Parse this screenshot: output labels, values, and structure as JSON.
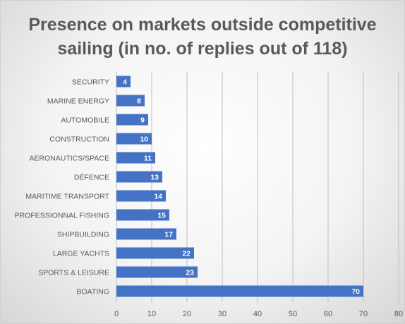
{
  "chart_data": {
    "type": "bar",
    "orientation": "horizontal",
    "title_lines": [
      "Presence on markets outside competitive",
      "sailing (in no. of replies out of 118)"
    ],
    "categories": [
      "SECURITY",
      "MARINE ENERGY",
      "AUTOMOBILE",
      "CONSTRUCTION",
      "AERONAUTICS/SPACE",
      "DÉFENCE",
      "MARITIME TRANSPORT",
      "PROFESSIONNAL FISHING",
      "SHIPBUILDING",
      "LARGE YACHTS",
      "SPORTS & LEISURE",
      "BOATING"
    ],
    "values": [
      4,
      8,
      9,
      10,
      11,
      13,
      14,
      15,
      17,
      22,
      23,
      70
    ],
    "xlim": [
      0,
      80
    ],
    "x_ticks": [
      0,
      10,
      20,
      30,
      40,
      50,
      60,
      70,
      80
    ],
    "grid": true,
    "data_labels": true,
    "bar_color": "#4472c4",
    "label_color": "#ffffff",
    "text_color": "#595959",
    "grid_color": "#bfbfbf"
  }
}
